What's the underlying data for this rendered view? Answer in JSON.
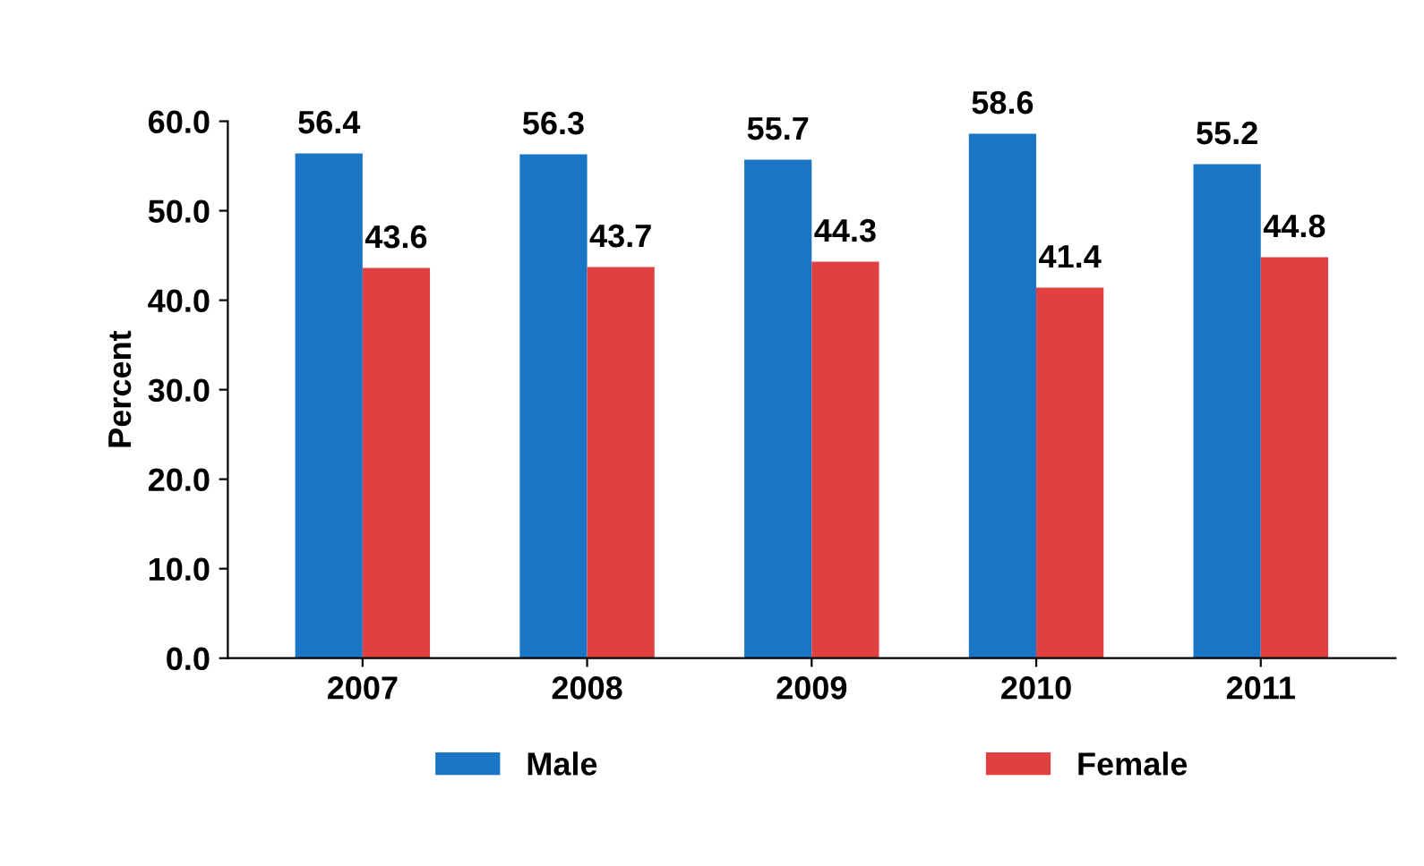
{
  "chart_data": {
    "type": "bar",
    "ylabel": "Percent",
    "categories": [
      "2007",
      "2008",
      "2009",
      "2010",
      "2011"
    ],
    "series": [
      {
        "name": "Male",
        "color": "#1a75c4",
        "values": [
          56.4,
          56.3,
          55.7,
          58.6,
          55.2
        ]
      },
      {
        "name": "Female",
        "color": "#e04040",
        "values": [
          43.6,
          43.7,
          44.3,
          41.4,
          44.8
        ]
      }
    ],
    "ylim": [
      0,
      60
    ],
    "yticks": [
      {
        "value": 0,
        "label": "0.0"
      },
      {
        "value": 10,
        "label": "10.0"
      },
      {
        "value": 20,
        "label": "20.0"
      },
      {
        "value": 30,
        "label": "30.0"
      },
      {
        "value": 40,
        "label": "40.0"
      },
      {
        "value": 50,
        "label": "50.0"
      },
      {
        "value": 60,
        "label": "60.0"
      }
    ],
    "data_labels": true,
    "legend": "bottom",
    "grid": false
  }
}
